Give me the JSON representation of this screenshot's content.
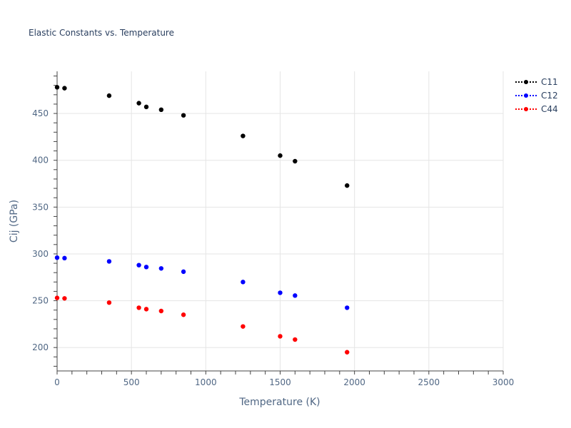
{
  "chart_data": {
    "type": "scatter",
    "title": "Elastic Constants vs. Temperature",
    "xlabel": "Temperature (K)",
    "ylabel": "Cij (GPa)",
    "xlim": [
      0,
      3000
    ],
    "ylim": [
      175,
      495
    ],
    "x_ticks": [
      0,
      500,
      1000,
      1500,
      2000,
      2500,
      3000
    ],
    "y_ticks": [
      200,
      250,
      300,
      350,
      400,
      450
    ],
    "grid": true,
    "legend": "top-right",
    "series": [
      {
        "name": "C11",
        "color": "#000000",
        "x": [
          0,
          50,
          350,
          550,
          600,
          700,
          850,
          1250,
          1500,
          1600,
          1950
        ],
        "y": [
          478,
          477,
          469,
          461,
          457,
          454,
          448,
          426,
          405,
          399,
          373
        ]
      },
      {
        "name": "C12",
        "color": "#0000ff",
        "x": [
          0,
          50,
          350,
          550,
          600,
          700,
          850,
          1250,
          1500,
          1600,
          1950
        ],
        "y": [
          296,
          295.5,
          292,
          288,
          286,
          284.5,
          281,
          270,
          258.5,
          255.5,
          242.5
        ]
      },
      {
        "name": "C44",
        "color": "#ff0000",
        "x": [
          0,
          50,
          350,
          550,
          600,
          700,
          850,
          1250,
          1500,
          1600,
          1950
        ],
        "y": [
          253,
          252.5,
          248,
          242.5,
          241,
          239,
          235,
          222.5,
          212,
          208.5,
          195
        ]
      }
    ]
  }
}
